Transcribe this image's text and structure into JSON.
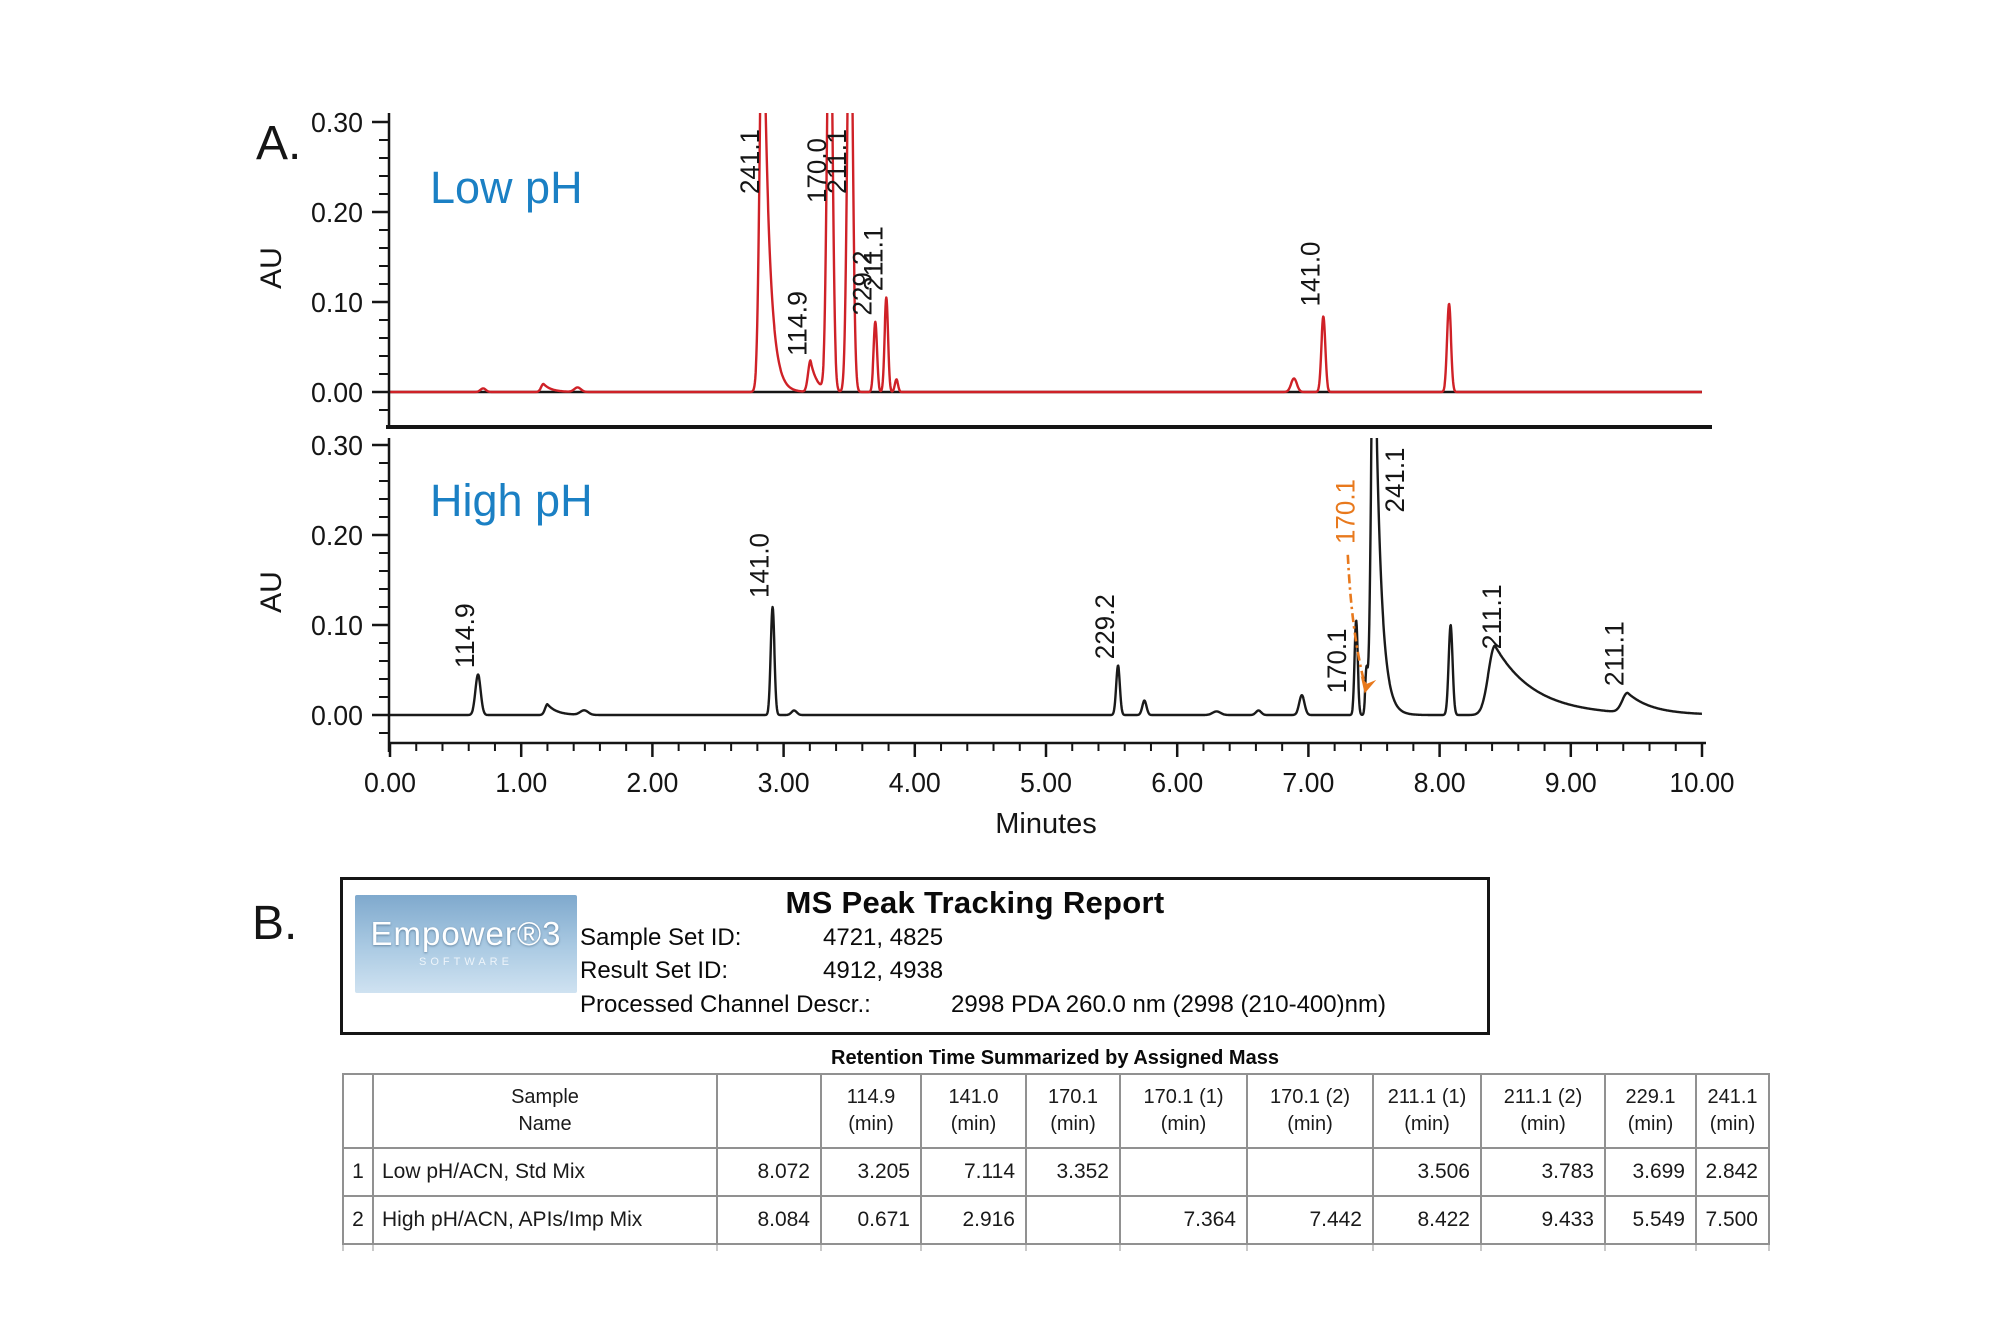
{
  "panels": {
    "a": "A.",
    "b": "B."
  },
  "chart_data": [
    {
      "type": "line",
      "title": "Low pH",
      "title_color": "#1b80c4",
      "xlabel": "Minutes",
      "ylabel": "AU",
      "xlim": [
        0,
        10
      ],
      "ylim": [
        0,
        0.3
      ],
      "line_color": "#cf2127",
      "baseline_color": "#151515",
      "y_ticks": [
        0,
        0.1,
        0.2,
        0.3
      ],
      "y_tick_labels": [
        "0.00",
        "0.10",
        "0.20",
        "0.30"
      ],
      "peaks": [
        {
          "t": 0.71,
          "h": 0.004,
          "w": 0.02
        },
        {
          "t": 1.17,
          "h": 0.009,
          "w": 0.018,
          "tail": 0.06
        },
        {
          "t": 1.43,
          "h": 0.005,
          "w": 0.025
        },
        {
          "mass": "241.1",
          "t": 2.842,
          "h": 0.5,
          "w": 0.022,
          "tail": 0.045,
          "clipped": true,
          "label_au": 0.22
        },
        {
          "mass": "114.9",
          "t": 3.205,
          "h": 0.035,
          "w": 0.018,
          "tail": 0.05,
          "label_au": 0.04
        },
        {
          "mass": "170.0",
          "t": 3.352,
          "h": 0.5,
          "w": 0.02,
          "clipped": true,
          "label_au": 0.21
        },
        {
          "mass": "211.1",
          "t": 3.506,
          "h": 0.5,
          "w": 0.02,
          "clipped": true,
          "label_au": 0.22
        },
        {
          "mass": "229.2",
          "t": 3.699,
          "h": 0.078,
          "w": 0.013,
          "label_au": 0.085
        },
        {
          "mass": "211.1",
          "t": 3.783,
          "h": 0.105,
          "w": 0.013,
          "label_au": 0.112
        },
        {
          "t": 3.86,
          "h": 0.014,
          "w": 0.012
        },
        {
          "t": 6.89,
          "h": 0.015,
          "w": 0.022
        },
        {
          "mass": "141.0",
          "t": 7.114,
          "h": 0.084,
          "w": 0.015,
          "label_au": 0.095
        },
        {
          "t": 8.072,
          "h": 0.098,
          "w": 0.015
        }
      ]
    },
    {
      "type": "line",
      "title": "High pH",
      "title_color": "#1b80c4",
      "xlabel": "Minutes",
      "ylabel": "AU",
      "xlim": [
        0,
        10
      ],
      "ylim": [
        0,
        0.3
      ],
      "line_color": "#1a1a1a",
      "x_ticks": [
        0,
        1,
        2,
        3,
        4,
        5,
        6,
        7,
        8,
        9,
        10
      ],
      "x_tick_labels": [
        "0.00",
        "1.00",
        "2.00",
        "3.00",
        "4.00",
        "5.00",
        "6.00",
        "7.00",
        "8.00",
        "9.00",
        "10.00"
      ],
      "y_ticks": [
        0,
        0.1,
        0.2,
        0.3
      ],
      "y_tick_labels": [
        "0.00",
        "0.10",
        "0.20",
        "0.30"
      ],
      "peaks": [
        {
          "mass": "114.9",
          "t": 0.671,
          "h": 0.045,
          "w": 0.02,
          "label_au": 0.052
        },
        {
          "t": 1.2,
          "h": 0.012,
          "w": 0.018,
          "tail": 0.07
        },
        {
          "t": 1.48,
          "h": 0.005,
          "w": 0.03
        },
        {
          "mass": "141.0",
          "t": 2.916,
          "h": 0.12,
          "w": 0.014,
          "label_au": 0.13
        },
        {
          "t": 3.08,
          "h": 0.005,
          "w": 0.02
        },
        {
          "mass": "229.2",
          "t": 5.549,
          "h": 0.055,
          "w": 0.014,
          "label_au": 0.062
        },
        {
          "t": 5.75,
          "h": 0.016,
          "w": 0.016
        },
        {
          "t": 6.3,
          "h": 0.004,
          "w": 0.03
        },
        {
          "t": 6.62,
          "h": 0.005,
          "w": 0.02
        },
        {
          "t": 6.95,
          "h": 0.022,
          "w": 0.02
        },
        {
          "mass": "170.1",
          "t": 7.364,
          "h": 0.105,
          "w": 0.012,
          "label_au": 0.024,
          "label_dx": -10
        },
        {
          "t": 7.442,
          "h": 0.046,
          "w": 0.009
        },
        {
          "mass": "241.1",
          "t": 7.5,
          "h": 0.5,
          "w": 0.02,
          "tail": 0.045,
          "clipped": true,
          "label_au": 0.225,
          "label_dx": 30
        },
        {
          "t": 8.084,
          "h": 0.1,
          "w": 0.015
        },
        {
          "mass": "211.1",
          "t": 8.422,
          "h": 0.077,
          "w": 0.05,
          "tail": 0.3,
          "label_au": 0.073,
          "label_dx": 6
        },
        {
          "mass": "211.1",
          "t": 9.433,
          "h": 0.022,
          "w": 0.04,
          "tail": 0.18,
          "label_au": 0.032,
          "label_dx": -4
        }
      ],
      "annotation": {
        "text": "170.1",
        "color": "#e8791d",
        "label_t": 7.35,
        "label_au": 0.19,
        "arrow_from": [
          7.3,
          0.178
        ],
        "arrow_ctrl": [
          7.33,
          0.09
        ],
        "arrow_to": [
          7.428,
          0.035
        ]
      }
    }
  ],
  "report": {
    "title": "MS Peak Tracking Report",
    "logo_text": "Empower®3",
    "logo_subtext": "SOFTWARE",
    "rows": [
      {
        "label": "Sample Set ID:",
        "value": "4721, 4825"
      },
      {
        "label": "Result Set ID:",
        "value": "4912, 4938"
      },
      {
        "label": "Processed Channel Descr.:",
        "value": "2998 PDA 260.0 nm (2998 (210-400)nm)"
      }
    ]
  },
  "table": {
    "title": "Retention Time Summarized by Assigned Mass",
    "columns": [
      {
        "line1": "",
        "line2": ""
      },
      {
        "line1": "Sample",
        "line2": "Name"
      },
      {
        "line1": "",
        "line2": ""
      },
      {
        "line1": "114.9",
        "line2": "(min)"
      },
      {
        "line1": "141.0",
        "line2": "(min)"
      },
      {
        "line1": "170.1",
        "line2": "(min)"
      },
      {
        "line1": "170.1 (1)",
        "line2": "(min)"
      },
      {
        "line1": "170.1 (2)",
        "line2": "(min)"
      },
      {
        "line1": "211.1 (1)",
        "line2": "(min)"
      },
      {
        "line1": "211.1 (2)",
        "line2": "(min)"
      },
      {
        "line1": "229.1",
        "line2": "(min)"
      },
      {
        "line1": "241.1",
        "line2": "(min)"
      }
    ],
    "rows": [
      {
        "num": "1",
        "name": "Low pH/ACN, Std Mix",
        "values": [
          "8.072",
          "3.205",
          "7.114",
          "3.352",
          "",
          "",
          "3.506",
          "3.783",
          "3.699",
          "2.842"
        ]
      },
      {
        "num": "2",
        "name": "High pH/ACN, APIs/Imp Mix",
        "values": [
          "8.084",
          "0.671",
          "2.916",
          "",
          "7.364",
          "7.442",
          "8.422",
          "9.433",
          "5.549",
          "7.500"
        ]
      }
    ]
  }
}
